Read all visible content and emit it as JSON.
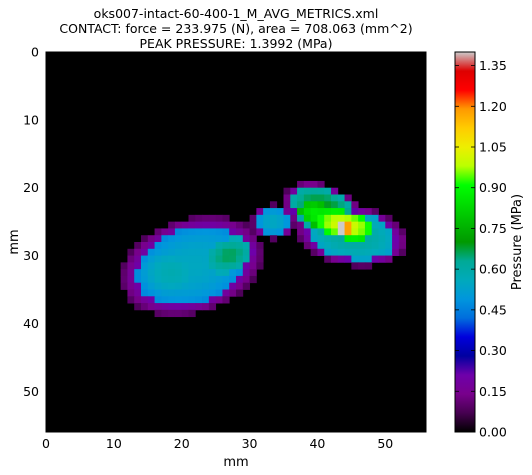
{
  "chart_data": {
    "type": "heatmap",
    "title_lines": [
      "oks007-intact-60-400-1_M_AVG_METRICS.xml",
      "CONTACT: force = 233.975 (N), area = 708.063 (mm^2)",
      "PEAK PRESSURE: 1.3992 (MPa)"
    ],
    "xlabel": "mm",
    "ylabel": "mm",
    "xlim": [
      0,
      56
    ],
    "ylim": [
      56,
      0
    ],
    "xticks": [
      0,
      10,
      20,
      30,
      40,
      50
    ],
    "yticks": [
      0,
      10,
      20,
      30,
      40,
      50
    ],
    "colorbar": {
      "label": "Pressure (MPa)",
      "min": 0.0,
      "max": 1.4,
      "ticks": [
        "0.00",
        "0.15",
        "0.30",
        "0.45",
        "0.60",
        "0.75",
        "0.90",
        "1.05",
        "1.20",
        "1.35"
      ],
      "colormap": "nipy_spectral"
    },
    "peak": {
      "x": 43.5,
      "y": 26,
      "value": 1.3992
    },
    "background_color": "#000000",
    "regions": [
      {
        "cx": 21.5,
        "cy": 31.5,
        "rx": 8.5,
        "ry": 5.5,
        "rot": -18,
        "value": 0.55
      },
      {
        "cx": 18.5,
        "cy": 32.5,
        "rx": 4.5,
        "ry": 3.5,
        "rot": 0,
        "value": 0.58
      },
      {
        "cx": 27.0,
        "cy": 30.0,
        "rx": 3.5,
        "ry": 2.5,
        "rot": -20,
        "value": 0.66
      },
      {
        "cx": 33.5,
        "cy": 25.0,
        "rx": 2.5,
        "ry": 2.0,
        "rot": 0,
        "value": 0.55
      },
      {
        "cx": 41.0,
        "cy": 23.5,
        "rx": 5.0,
        "ry": 3.0,
        "rot": 25,
        "value": 0.7
      },
      {
        "cx": 45.0,
        "cy": 27.0,
        "rx": 6.5,
        "ry": 3.5,
        "rot": 10,
        "value": 0.62
      },
      {
        "cx": 40.0,
        "cy": 24.0,
        "rx": 3.0,
        "ry": 1.8,
        "rot": 20,
        "value": 0.88
      },
      {
        "cx": 44.0,
        "cy": 25.5,
        "rx": 4.5,
        "ry": 2.0,
        "rot": 10,
        "value": 1.02
      },
      {
        "cx": 44.0,
        "cy": 26.0,
        "rx": 1.4,
        "ry": 1.0,
        "rot": 0,
        "value": 1.25
      }
    ]
  }
}
